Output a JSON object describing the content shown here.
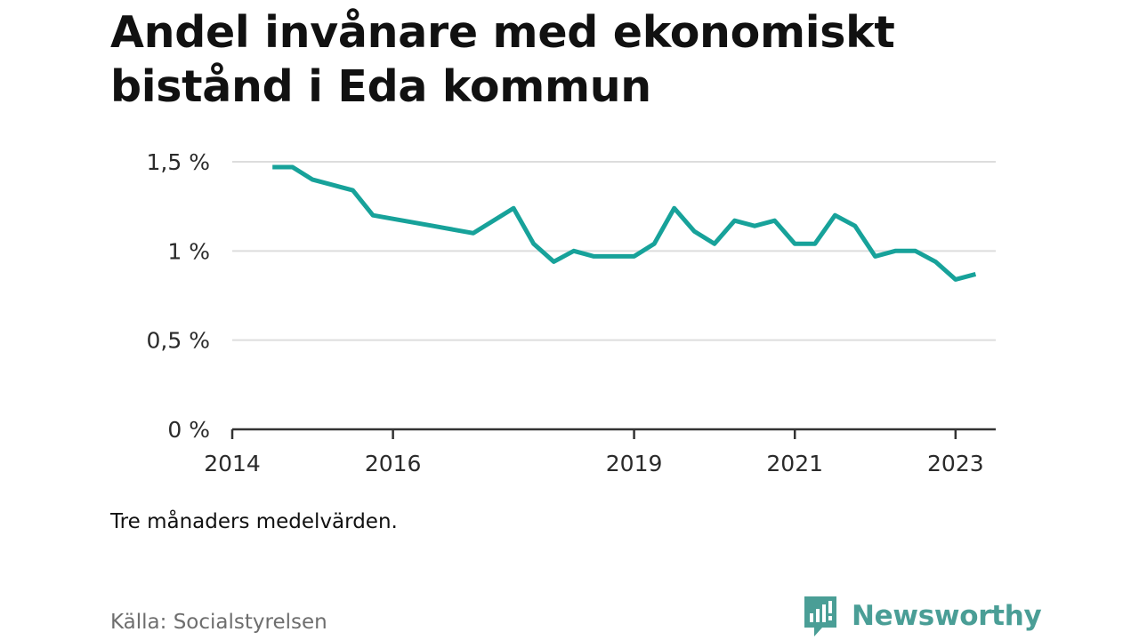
{
  "title": "Andel invånare med ekonomiskt bistånd i Eda kommun",
  "note": "Tre månaders medelvärden.",
  "source": "Källa: Socialstyrelsen",
  "brand": {
    "name": "Newsworthy",
    "icon": "newsworthy-logo-icon",
    "color": "#4a9e96"
  },
  "colors": {
    "line": "#17a29a",
    "grid": "#dddddd",
    "axis": "#333333"
  },
  "chart_data": {
    "type": "line",
    "title": "Andel invånare med ekonomiskt bistånd i Eda kommun",
    "xlabel": "",
    "ylabel": "",
    "ylim": [
      0,
      1.5
    ],
    "xlim": [
      "2014-01",
      "2023-07"
    ],
    "grid": true,
    "legend": "none",
    "yticks": [
      {
        "value": 0,
        "label": "0 %"
      },
      {
        "value": 0.5,
        "label": "0,5 %"
      },
      {
        "value": 1,
        "label": "1 %"
      },
      {
        "value": 1.5,
        "label": "1,5 %"
      }
    ],
    "xticks": [
      {
        "value": "2014-01",
        "label": "2014"
      },
      {
        "value": "2016-01",
        "label": "2016"
      },
      {
        "value": "2019-01",
        "label": "2019"
      },
      {
        "value": "2021-01",
        "label": "2021"
      },
      {
        "value": "2023-01",
        "label": "2023"
      }
    ],
    "series": [
      {
        "x": [
          "2014-07",
          "2014-10",
          "2015-01",
          "2015-04",
          "2015-07",
          "2015-10",
          "2016-01",
          "2016-04",
          "2016-07",
          "2016-10",
          "2017-01",
          "2017-04",
          "2017-07",
          "2017-10",
          "2018-01",
          "2018-04",
          "2018-07",
          "2018-10",
          "2019-01",
          "2019-04",
          "2019-07",
          "2019-10",
          "2020-01",
          "2020-04",
          "2020-07",
          "2020-10",
          "2021-01",
          "2021-04",
          "2021-07",
          "2021-10",
          "2022-01",
          "2022-04",
          "2022-07",
          "2022-10",
          "2023-01",
          "2023-04"
        ],
        "values": [
          1.47,
          1.47,
          1.4,
          1.37,
          1.34,
          1.2,
          1.18,
          1.16,
          1.14,
          1.12,
          1.1,
          1.17,
          1.24,
          1.04,
          0.94,
          1.0,
          0.97,
          0.97,
          0.97,
          1.04,
          1.24,
          1.11,
          1.04,
          1.17,
          1.14,
          1.17,
          1.04,
          1.04,
          1.2,
          1.14,
          0.97,
          1.0,
          1.0,
          0.94,
          0.84,
          0.87
        ]
      }
    ]
  }
}
